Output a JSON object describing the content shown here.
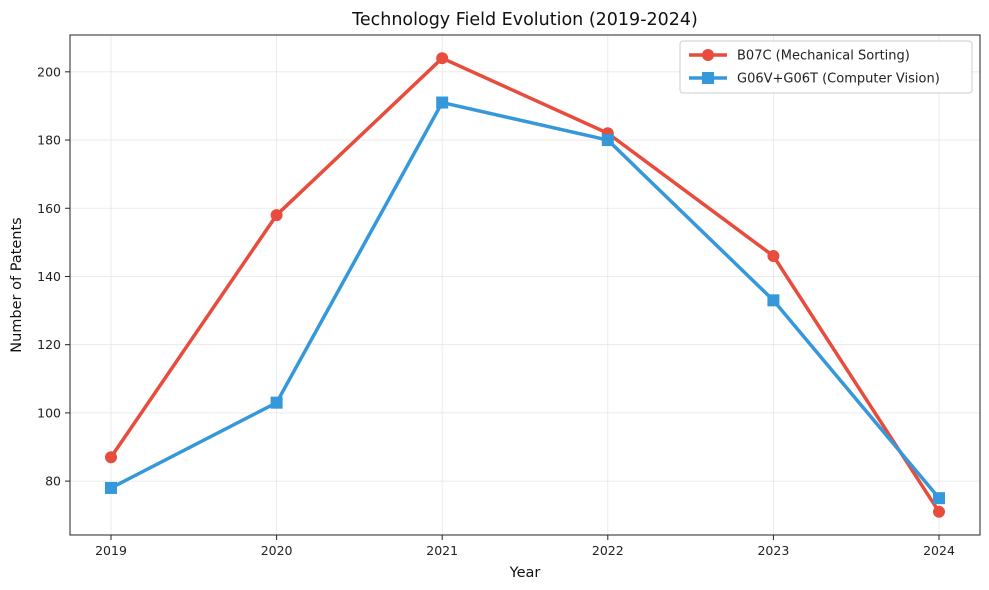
{
  "chart_data": {
    "type": "line",
    "title": "Technology Field Evolution (2019-2024)",
    "xlabel": "Year",
    "ylabel": "Number of Patents",
    "x": [
      "2019",
      "2020",
      "2021",
      "2022",
      "2023",
      "2024"
    ],
    "ylim": [
      64.2,
      210.8
    ],
    "yticks": [
      80,
      100,
      120,
      140,
      160,
      180,
      200
    ],
    "grid": true,
    "legend_position": "top-right",
    "series": [
      {
        "name": "B07C (Mechanical Sorting)",
        "values": [
          87,
          158,
          204,
          182,
          146,
          71
        ],
        "color": "#e74c3c",
        "marker": "circle"
      },
      {
        "name": "G06V+G06T (Computer Vision)",
        "values": [
          78,
          103,
          191,
          180,
          133,
          75
        ],
        "color": "#3498db",
        "marker": "square"
      }
    ]
  }
}
